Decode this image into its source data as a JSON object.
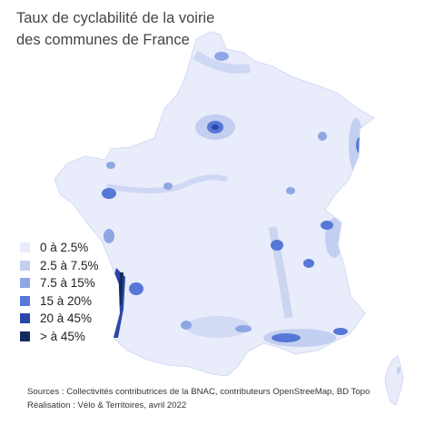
{
  "title": {
    "line1": "Taux de cyclabilité de la voirie",
    "line2": "des communes de France"
  },
  "legend": [
    {
      "label": "0 à 2.5%",
      "color": "#e8ecfb"
    },
    {
      "label": "2.5 à 7.5%",
      "color": "#c3cff0"
    },
    {
      "label": "7.5 à 15%",
      "color": "#8fa6e4"
    },
    {
      "label": "15 à 20%",
      "color": "#5677d6"
    },
    {
      "label": "20 à 45%",
      "color": "#2a47a8"
    },
    {
      "label": "> à 45%",
      "color": "#142a5e"
    }
  ],
  "footer": {
    "sources": "Sources : Collectivités contributrices de la BNAC, contributeurs OpenStreeMap, BD Topo",
    "realisation": "Réalisation : Vélo & Territoires, avril 2022"
  }
}
